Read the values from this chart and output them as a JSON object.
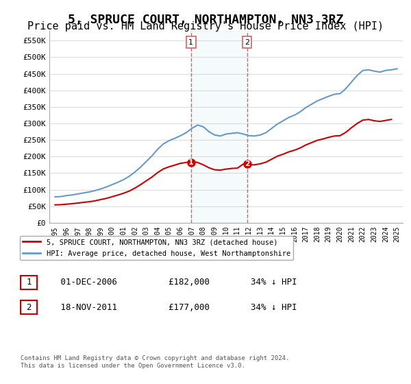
{
  "title": "5, SPRUCE COURT, NORTHAMPTON, NN3 3RZ",
  "subtitle": "Price paid vs. HM Land Registry's House Price Index (HPI)",
  "title_fontsize": 13,
  "subtitle_fontsize": 11,
  "background_color": "#ffffff",
  "plot_bg_color": "#ffffff",
  "grid_color": "#dddddd",
  "ylabel_ticks": [
    "£0",
    "£50K",
    "£100K",
    "£150K",
    "£200K",
    "£250K",
    "£300K",
    "£350K",
    "£400K",
    "£450K",
    "£500K",
    "£550K"
  ],
  "ytick_values": [
    0,
    50000,
    100000,
    150000,
    200000,
    250000,
    300000,
    350000,
    400000,
    450000,
    500000,
    550000
  ],
  "ylim": [
    0,
    580000
  ],
  "legend_label_red": "5, SPRUCE COURT, NORTHAMPTON, NN3 3RZ (detached house)",
  "legend_label_blue": "HPI: Average price, detached house, West Northamptonshire",
  "red_color": "#cc0000",
  "blue_color": "#6699cc",
  "marker1_date": "2006-12",
  "marker1_label": "1",
  "marker1_price": 182000,
  "marker2_date": "2011-11",
  "marker2_label": "2",
  "marker2_price": 177000,
  "table_row1": [
    "1",
    "01-DEC-2006",
    "£182,000",
    "34% ↓ HPI"
  ],
  "table_row2": [
    "2",
    "18-NOV-2011",
    "£177,000",
    "34% ↓ HPI"
  ],
  "footer": "Contains HM Land Registry data © Crown copyright and database right 2024.\nThis data is licensed under the Open Government Licence v3.0.",
  "xticklabels": [
    "1995",
    "1996",
    "1997",
    "1998",
    "1999",
    "2000",
    "2001",
    "2002",
    "2003",
    "2004",
    "2005",
    "2006",
    "2007",
    "2008",
    "2009",
    "2010",
    "2011",
    "2012",
    "2013",
    "2014",
    "2015",
    "2016",
    "2017",
    "2018",
    "2019",
    "2020",
    "2021",
    "2022",
    "2023",
    "2024",
    "2025"
  ]
}
